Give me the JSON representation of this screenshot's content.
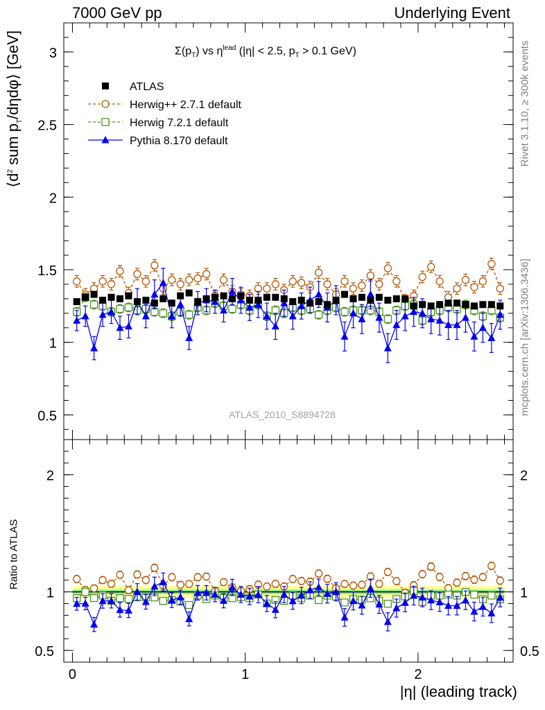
{
  "header": {
    "left": "7000 GeV pp",
    "right": "Underlying Event"
  },
  "side": {
    "rivet": "Rivet 3.1.10, ≥ 300k events",
    "mcplots": "mcplots.cern.ch [arXiv:1306.3436]"
  },
  "analysis_id": "ATLAS_2010_S8894728",
  "colors": {
    "atlas": "#000000",
    "herwigpp": "#b35806",
    "herwig7": "#4d9221",
    "pythia": "#0000ee",
    "band_inner": "#90ee90",
    "band_outer": "#ffff99"
  },
  "chart_data": [
    {
      "type": "scatter",
      "title": "Σ(p_T) vs η^lead (|η| < 2.5, p_T > 0.1 GeV)",
      "title_parts": {
        "a": "Σ(p",
        "a_sub": "T",
        "b": ") vs η",
        "b_sup": "lead",
        "c": " (|η| < 2.5, p",
        "c_sub": "T",
        "d": " > 0.1 GeV)"
      },
      "xlabel": "|η| (leading track)",
      "ylabel": "⟨d² sum p_T/dηdφ⟩ [GeV]",
      "ylabel_parts": {
        "a": "⟨d",
        "a_sup": "2",
        "b": " sum p",
        "b_sub": "T",
        "c": "/dηdφ⟩ [GeV]"
      },
      "xlim": [
        -0.05,
        2.55
      ],
      "ylim": [
        0.33,
        3.2
      ],
      "xticks": [
        0,
        1,
        2
      ],
      "yticks": [
        0.5,
        1,
        1.5,
        2,
        2.5,
        3
      ],
      "legend_position": "top-left",
      "x": [
        0.025,
        0.075,
        0.125,
        0.175,
        0.225,
        0.275,
        0.325,
        0.375,
        0.425,
        0.475,
        0.525,
        0.575,
        0.625,
        0.675,
        0.725,
        0.775,
        0.825,
        0.875,
        0.925,
        0.975,
        1.025,
        1.075,
        1.125,
        1.175,
        1.225,
        1.275,
        1.325,
        1.375,
        1.425,
        1.475,
        1.525,
        1.575,
        1.625,
        1.675,
        1.725,
        1.775,
        1.825,
        1.875,
        1.925,
        1.975,
        2.025,
        2.075,
        2.125,
        2.175,
        2.225,
        2.275,
        2.325,
        2.375,
        2.425,
        2.475
      ],
      "series": [
        {
          "name": "ATLAS",
          "marker": "filled-square",
          "values": [
            1.28,
            1.31,
            1.33,
            1.29,
            1.31,
            1.3,
            1.32,
            1.28,
            1.29,
            1.27,
            1.3,
            1.27,
            1.32,
            1.34,
            1.28,
            1.3,
            1.31,
            1.32,
            1.3,
            1.32,
            1.29,
            1.29,
            1.31,
            1.31,
            1.3,
            1.28,
            1.29,
            1.27,
            1.28,
            1.26,
            1.29,
            1.33,
            1.3,
            1.31,
            1.29,
            1.31,
            1.29,
            1.3,
            1.3,
            1.25,
            1.26,
            1.25,
            1.26,
            1.27,
            1.27,
            1.26,
            1.25,
            1.26,
            1.26,
            1.25
          ],
          "errors": [
            0.02,
            0.02,
            0.02,
            0.02,
            0.02,
            0.02,
            0.02,
            0.02,
            0.02,
            0.02,
            0.02,
            0.02,
            0.02,
            0.02,
            0.02,
            0.02,
            0.02,
            0.02,
            0.02,
            0.02,
            0.02,
            0.02,
            0.02,
            0.02,
            0.02,
            0.02,
            0.02,
            0.02,
            0.02,
            0.02,
            0.02,
            0.02,
            0.02,
            0.02,
            0.02,
            0.02,
            0.02,
            0.02,
            0.02,
            0.02,
            0.02,
            0.02,
            0.02,
            0.02,
            0.02,
            0.02,
            0.02,
            0.02,
            0.02,
            0.02
          ]
        },
        {
          "name": "Herwig++ 2.7.1 default",
          "marker": "open-circle",
          "values": [
            1.42,
            1.33,
            1.37,
            1.42,
            1.4,
            1.49,
            1.34,
            1.47,
            1.42,
            1.53,
            1.37,
            1.43,
            1.4,
            1.43,
            1.44,
            1.47,
            1.32,
            1.43,
            1.35,
            1.33,
            1.32,
            1.37,
            1.37,
            1.4,
            1.36,
            1.42,
            1.41,
            1.38,
            1.48,
            1.4,
            1.33,
            1.42,
            1.37,
            1.39,
            1.46,
            1.4,
            1.51,
            1.42,
            1.29,
            1.32,
            1.45,
            1.52,
            1.42,
            1.31,
            1.37,
            1.43,
            1.38,
            1.42,
            1.54,
            1.37
          ],
          "errors": [
            0.04,
            0.04,
            0.04,
            0.04,
            0.04,
            0.04,
            0.04,
            0.04,
            0.04,
            0.04,
            0.04,
            0.04,
            0.04,
            0.04,
            0.04,
            0.04,
            0.04,
            0.04,
            0.04,
            0.04,
            0.04,
            0.04,
            0.04,
            0.04,
            0.04,
            0.04,
            0.04,
            0.04,
            0.04,
            0.04,
            0.04,
            0.04,
            0.04,
            0.04,
            0.04,
            0.04,
            0.04,
            0.04,
            0.04,
            0.04,
            0.04,
            0.04,
            0.04,
            0.04,
            0.04,
            0.04,
            0.04,
            0.04,
            0.04,
            0.04
          ]
        },
        {
          "name": "Herwig 7.2.1 default",
          "marker": "open-square",
          "values": [
            1.21,
            1.31,
            1.26,
            1.25,
            1.21,
            1.23,
            1.24,
            1.22,
            1.23,
            1.21,
            1.2,
            1.18,
            1.21,
            1.19,
            1.24,
            1.22,
            1.27,
            1.25,
            1.23,
            1.26,
            1.22,
            1.26,
            1.18,
            1.22,
            1.2,
            1.24,
            1.22,
            1.23,
            1.19,
            1.22,
            1.24,
            1.21,
            1.22,
            1.22,
            1.22,
            1.21,
            1.16,
            1.22,
            1.25,
            1.26,
            1.15,
            1.21,
            1.22,
            1.24,
            1.23,
            1.26,
            1.22,
            1.18,
            1.22,
            1.17
          ],
          "errors": [
            0.03,
            0.03,
            0.03,
            0.03,
            0.03,
            0.03,
            0.03,
            0.03,
            0.03,
            0.03,
            0.03,
            0.03,
            0.03,
            0.03,
            0.03,
            0.03,
            0.03,
            0.03,
            0.03,
            0.03,
            0.03,
            0.03,
            0.03,
            0.03,
            0.03,
            0.03,
            0.03,
            0.03,
            0.03,
            0.03,
            0.03,
            0.03,
            0.03,
            0.03,
            0.03,
            0.03,
            0.03,
            0.03,
            0.03,
            0.03,
            0.03,
            0.03,
            0.03,
            0.03,
            0.03,
            0.03,
            0.03,
            0.03,
            0.03,
            0.03
          ]
        },
        {
          "name": "Pythia 8.170 default",
          "marker": "filled-triangle",
          "values": [
            1.15,
            1.18,
            0.96,
            1.19,
            1.21,
            1.1,
            1.11,
            1.28,
            1.18,
            1.33,
            1.41,
            1.18,
            1.26,
            1.03,
            1.27,
            1.29,
            1.28,
            1.22,
            1.35,
            1.29,
            1.24,
            1.26,
            1.18,
            1.11,
            1.27,
            1.18,
            1.25,
            1.29,
            1.33,
            1.24,
            1.29,
            1.04,
            1.2,
            1.16,
            1.33,
            1.17,
            0.96,
            1.12,
            1.18,
            1.21,
            1.2,
            1.16,
            1.15,
            1.12,
            1.12,
            1.17,
            1.04,
            1.1,
            1.03,
            1.19
          ],
          "errors": [
            0.07,
            0.07,
            0.08,
            0.08,
            0.08,
            0.08,
            0.08,
            0.09,
            0.08,
            0.1,
            0.1,
            0.08,
            0.08,
            0.08,
            0.08,
            0.08,
            0.08,
            0.08,
            0.09,
            0.09,
            0.09,
            0.09,
            0.09,
            0.09,
            0.09,
            0.09,
            0.09,
            0.09,
            0.09,
            0.1,
            0.1,
            0.1,
            0.1,
            0.1,
            0.1,
            0.1,
            0.1,
            0.1,
            0.1,
            0.1,
            0.1,
            0.1,
            0.1,
            0.1,
            0.1,
            0.1,
            0.1,
            0.1,
            0.1,
            0.1
          ]
        }
      ]
    },
    {
      "type": "scatter",
      "title": "",
      "xlabel": "|η| (leading track)",
      "ylabel": "Ratio to ATLAS",
      "xlim": [
        -0.05,
        2.55
      ],
      "ylim": [
        0.4,
        2.3
      ],
      "xticks": [
        0,
        1,
        2
      ],
      "yticks": [
        0.5,
        1,
        2
      ],
      "reference_line": 1,
      "band_inner_halfwidth": 0.02,
      "band_outer_halfwidth": 0.05,
      "note": "ratios = model / ATLAS computed from panel 1"
    }
  ]
}
